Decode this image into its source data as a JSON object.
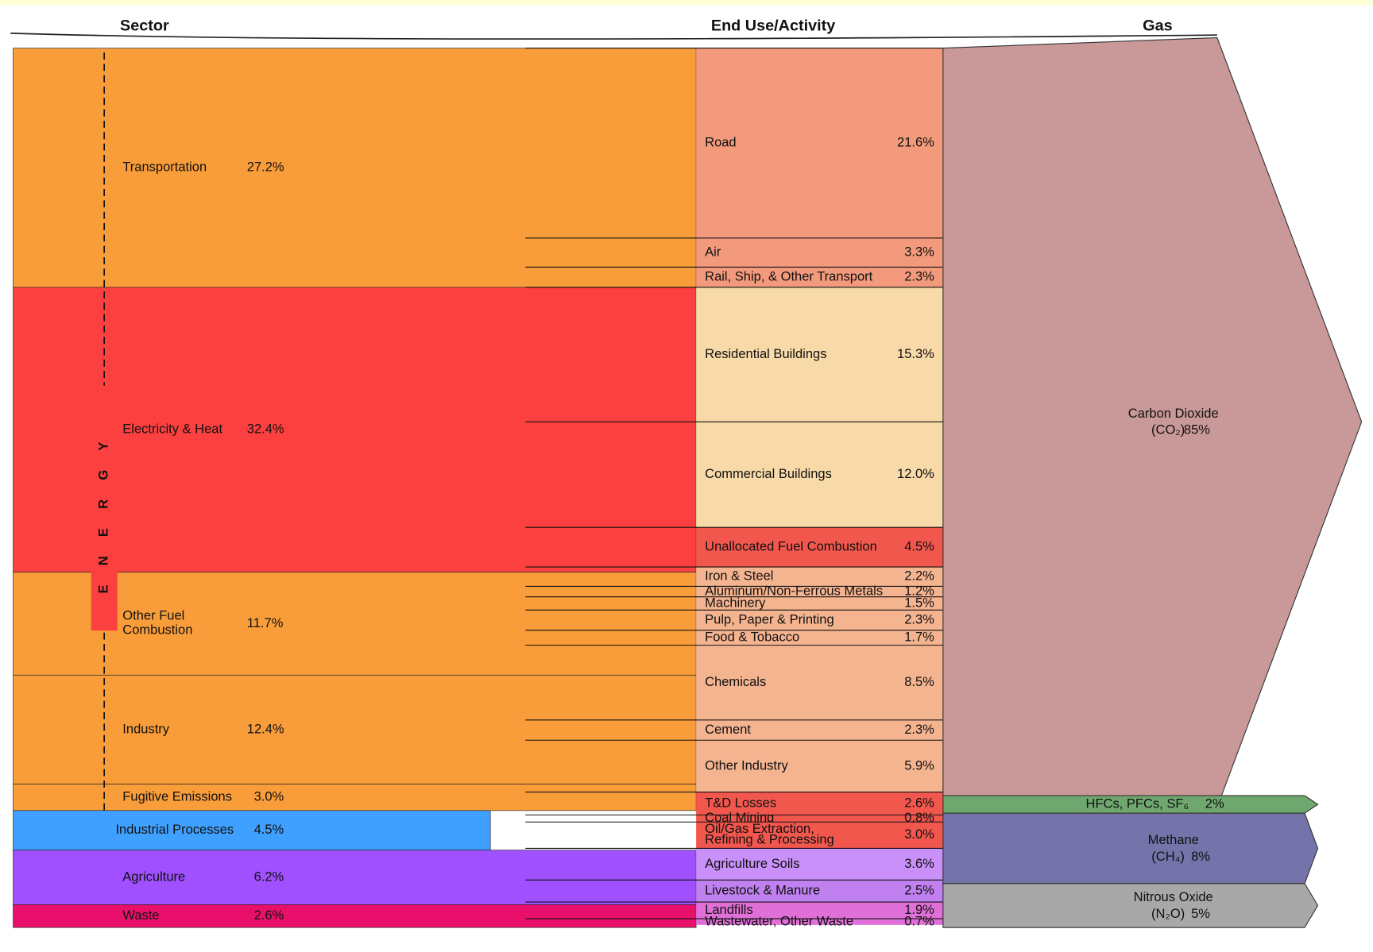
{
  "chart_data": {
    "type": "sankey",
    "column_titles": [
      "Sector",
      "End Use/Activity",
      "Gas"
    ],
    "energy_label": "ENERGY",
    "sectors": [
      {
        "name": "Transportation",
        "value": 27.2,
        "value_label": "27.2%",
        "color": "#f99d3a"
      },
      {
        "name": "Electricity & Heat",
        "value": 32.4,
        "value_label": "32.4%",
        "color": "#fc4040"
      },
      {
        "name": [
          "Other Fuel",
          "Combustion"
        ],
        "value": 11.7,
        "value_label": "11.7%",
        "color": "#f99d3a"
      },
      {
        "name": "Industry",
        "value": 12.4,
        "value_label": "12.4%",
        "color": "#f99d3a"
      },
      {
        "name": "Fugitive Emissions",
        "value": 3.0,
        "value_label": "3.0%",
        "color": "#f99d3a"
      },
      {
        "name": "Industrial Processes",
        "value": 4.5,
        "value_label": "4.5%",
        "color": "#3fa0ff"
      },
      {
        "name": "Agriculture",
        "value": 6.2,
        "value_label": "6.2%",
        "color": "#a050ff"
      },
      {
        "name": "Waste",
        "value": 2.6,
        "value_label": "2.6%",
        "color": "#e8106a"
      }
    ],
    "end_uses": [
      {
        "name": "Road",
        "value": 21.6,
        "value_label": "21.6%",
        "color": "#f49a7c"
      },
      {
        "name": "Air",
        "value": 3.3,
        "value_label": "3.3%",
        "color": "#f49a7c"
      },
      {
        "name": "Rail, Ship, & Other Transport",
        "value": 2.3,
        "value_label": "2.3%",
        "color": "#f49a7c"
      },
      {
        "name": "Residential Buildings",
        "value": 15.3,
        "value_label": "15.3%",
        "color": "#f8d9a8"
      },
      {
        "name": "Commercial Buildings",
        "value": 12.0,
        "value_label": "12.0%",
        "color": "#f8d9a8"
      },
      {
        "name": "Unallocated Fuel Combustion",
        "value": 4.5,
        "value_label": "4.5%",
        "color": "#f2574e"
      },
      {
        "name": "Iron & Steel",
        "value": 2.2,
        "value_label": "2.2%",
        "color": "#f5b490"
      },
      {
        "name": "Aluminum/Non-Ferrous Metals",
        "value": 1.2,
        "value_label": "1.2%",
        "color": "#f5b490"
      },
      {
        "name": "Machinery",
        "value": 1.5,
        "value_label": "1.5%",
        "color": "#f5b490"
      },
      {
        "name": "Pulp, Paper & Printing",
        "value": 2.3,
        "value_label": "2.3%",
        "color": "#f5b490"
      },
      {
        "name": "Food & Tobacco",
        "value": 1.7,
        "value_label": "1.7%",
        "color": "#f5b490"
      },
      {
        "name": "Chemicals",
        "value": 8.5,
        "value_label": "8.5%",
        "color": "#f5b490"
      },
      {
        "name": "Cement",
        "value": 2.3,
        "value_label": "2.3%",
        "color": "#f5b490"
      },
      {
        "name": "Other Industry",
        "value": 5.9,
        "value_label": "5.9%",
        "color": "#f5b490"
      },
      {
        "name": "T&D Losses",
        "value": 2.6,
        "value_label": "2.6%",
        "color": "#f2574e"
      },
      {
        "name": "Coal Mining",
        "value": 0.8,
        "value_label": "0.8%",
        "color": "#f2574e"
      },
      {
        "name": [
          "Oil/Gas Extraction,",
          "Refining & Processing"
        ],
        "value": 3.0,
        "value_label": "3.0%",
        "color": "#f2574e"
      },
      {
        "name": "Agriculture Soils",
        "value": 3.6,
        "value_label": "3.6%",
        "color": "#c890f8"
      },
      {
        "name": "Livestock & Manure",
        "value": 2.5,
        "value_label": "2.5%",
        "color": "#c080f0"
      },
      {
        "name": "Landfills",
        "value": 1.9,
        "value_label": "1.9%",
        "color": "#e070d8"
      },
      {
        "name": "Wastewater, Other Waste",
        "value": 0.7,
        "value_label": "0.7%",
        "color": "#e070d8"
      }
    ],
    "gases": [
      {
        "name": "Carbon Dioxide",
        "formula": "(CO₂)",
        "value": 85,
        "value_label": "85%",
        "color": "#c99898"
      },
      {
        "name": "HFCs, PFCs, SF₆",
        "value": 2,
        "value_label": "2%",
        "color": "#6fa86f"
      },
      {
        "name": "Methane",
        "formula": "(CH₄)",
        "value": 8,
        "value_label": "8%",
        "color": "#7474aa"
      },
      {
        "name": "Nitrous Oxide",
        "formula": "(N₂O)",
        "value": 5,
        "value_label": "5%",
        "color": "#a8a8a8"
      }
    ]
  }
}
